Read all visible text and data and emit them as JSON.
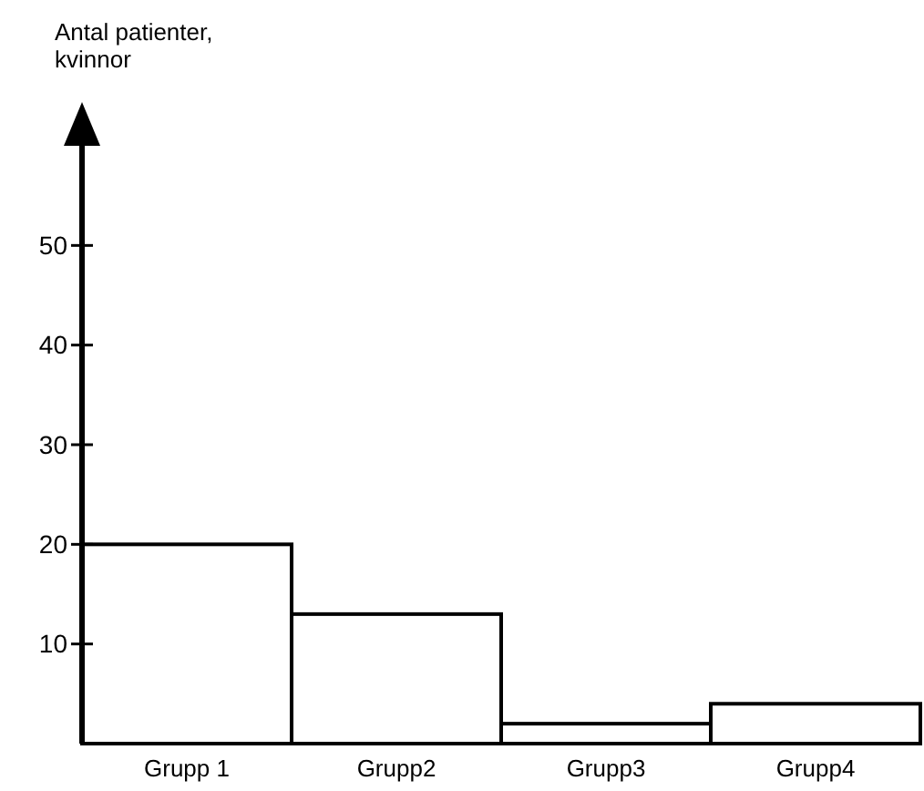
{
  "chart_data": {
    "type": "bar",
    "ylabel": "Antal patienter,\nkvinnor",
    "categories": [
      "Grupp 1",
      "Grupp2",
      "Grupp3",
      "Grupp4"
    ],
    "values": [
      20,
      13,
      2,
      4
    ],
    "color": "#ffffff",
    "ylim": [
      0,
      60
    ],
    "yticks": [
      10,
      20,
      30,
      40,
      50
    ],
    "grid": false
  }
}
